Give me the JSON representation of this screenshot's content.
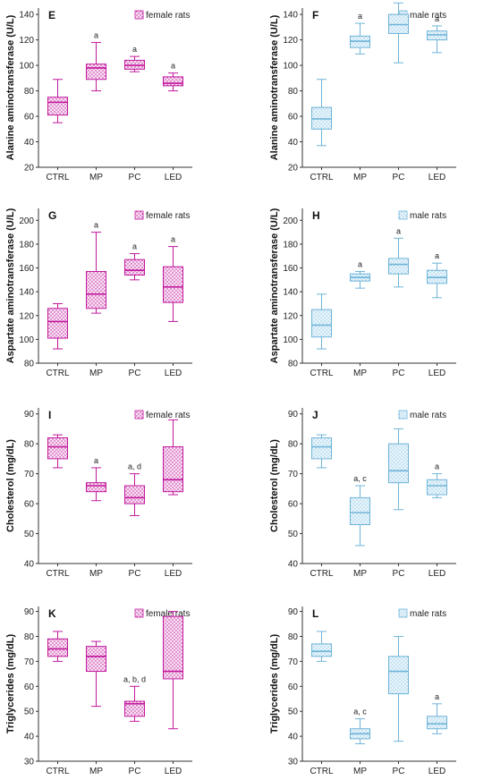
{
  "colors": {
    "female": "#c2189c",
    "male": "#6fb4d9",
    "female_fill": "#f6dff1",
    "male_fill": "#e4f3fb"
  },
  "chart_data": [
    {
      "panel": "E",
      "type": "box",
      "legend": "female rats",
      "color_key": "female",
      "ylabel": "Alanine aminotransferase (U/L)",
      "ylim": [
        20,
        145
      ],
      "yticks": [
        "20",
        "40",
        "60",
        "80",
        "100",
        "120",
        "140"
      ],
      "categories": [
        "CTRL",
        "MP",
        "PC",
        "LED"
      ],
      "boxes": [
        {
          "min": 55,
          "q1": 61,
          "median": 71,
          "q3": 75,
          "max": 89,
          "label": ""
        },
        {
          "min": 80,
          "q1": 89,
          "median": 98,
          "q3": 101,
          "max": 118,
          "label": "a"
        },
        {
          "min": 95,
          "q1": 97,
          "median": 100,
          "q3": 104,
          "max": 107,
          "label": "a"
        },
        {
          "min": 80,
          "q1": 84,
          "median": 86,
          "q3": 91,
          "max": 94,
          "label": "a"
        }
      ]
    },
    {
      "panel": "F",
      "type": "box",
      "legend": "male rats",
      "color_key": "male",
      "ylabel": "Alanine aminotransferase (U/L)",
      "ylim": [
        20,
        145
      ],
      "yticks": [
        "20",
        "40",
        "60",
        "80",
        "100",
        "120",
        "140"
      ],
      "categories": [
        "CTRL",
        "MP",
        "PC",
        "LED"
      ],
      "boxes": [
        {
          "min": 37,
          "q1": 50,
          "median": 58,
          "q3": 67,
          "max": 89,
          "label": ""
        },
        {
          "min": 109,
          "q1": 114,
          "median": 119,
          "q3": 123,
          "max": 133,
          "label": "a"
        },
        {
          "min": 102,
          "q1": 125,
          "median": 132,
          "q3": 140,
          "max": 149,
          "label": "a"
        },
        {
          "min": 110,
          "q1": 120,
          "median": 124,
          "q3": 127,
          "max": 131,
          "label": "a"
        }
      ]
    },
    {
      "panel": "G",
      "type": "box",
      "legend": "female rats",
      "color_key": "female",
      "ylabel": "Aspartate aminotransferase (U/L)",
      "ylim": [
        80,
        210
      ],
      "yticks": [
        "80",
        "100",
        "120",
        "140",
        "160",
        "180",
        "200"
      ],
      "categories": [
        "CTRL",
        "MP",
        "PC",
        "LED"
      ],
      "boxes": [
        {
          "min": 92,
          "q1": 101,
          "median": 115,
          "q3": 126,
          "max": 130,
          "label": ""
        },
        {
          "min": 122,
          "q1": 126,
          "median": 138,
          "q3": 157,
          "max": 190,
          "label": "a"
        },
        {
          "min": 150,
          "q1": 154,
          "median": 158,
          "q3": 167,
          "max": 172,
          "label": "a"
        },
        {
          "min": 115,
          "q1": 131,
          "median": 144,
          "q3": 161,
          "max": 178,
          "label": "a"
        }
      ]
    },
    {
      "panel": "H",
      "type": "box",
      "legend": "male rats",
      "color_key": "male",
      "ylabel": "Aspartate aminotransferase (U/L)",
      "ylim": [
        80,
        210
      ],
      "yticks": [
        "80",
        "100",
        "120",
        "140",
        "160",
        "180",
        "200"
      ],
      "categories": [
        "CTRL",
        "MP",
        "PC",
        "LED"
      ],
      "boxes": [
        {
          "min": 92,
          "q1": 102,
          "median": 112,
          "q3": 125,
          "max": 138,
          "label": ""
        },
        {
          "min": 143,
          "q1": 149,
          "median": 152,
          "q3": 155,
          "max": 157,
          "label": "a"
        },
        {
          "min": 144,
          "q1": 155,
          "median": 163,
          "q3": 168,
          "max": 185,
          "label": "a"
        },
        {
          "min": 135,
          "q1": 147,
          "median": 152,
          "q3": 158,
          "max": 164,
          "label": "a"
        }
      ]
    },
    {
      "panel": "I",
      "type": "box",
      "legend": "female rats",
      "color_key": "female",
      "ylabel": "Cholesterol (mg/dL)",
      "ylim": [
        40,
        92
      ],
      "yticks": [
        "40",
        "50",
        "60",
        "70",
        "80",
        "90"
      ],
      "categories": [
        "CTRL",
        "MP",
        "PC",
        "LED"
      ],
      "boxes": [
        {
          "min": 72,
          "q1": 75,
          "median": 79,
          "q3": 82,
          "max": 83,
          "label": ""
        },
        {
          "min": 61,
          "q1": 64,
          "median": 66,
          "q3": 67,
          "max": 72,
          "label": "a"
        },
        {
          "min": 56,
          "q1": 60,
          "median": 62,
          "q3": 66,
          "max": 70,
          "label": "a, d"
        },
        {
          "min": 63,
          "q1": 64,
          "median": 68,
          "q3": 79,
          "max": 88,
          "label": ""
        }
      ]
    },
    {
      "panel": "J",
      "type": "box",
      "legend": "male rats",
      "color_key": "male",
      "ylabel": "Cholesterol (mg/dL)",
      "ylim": [
        40,
        92
      ],
      "yticks": [
        "40",
        "50",
        "60",
        "70",
        "80",
        "90"
      ],
      "categories": [
        "CTRL",
        "MP",
        "PC",
        "LED"
      ],
      "boxes": [
        {
          "min": 72,
          "q1": 75,
          "median": 79,
          "q3": 82,
          "max": 83,
          "label": ""
        },
        {
          "min": 46,
          "q1": 53,
          "median": 57,
          "q3": 62,
          "max": 66,
          "label": "a, c"
        },
        {
          "min": 58,
          "q1": 67,
          "median": 71,
          "q3": 80,
          "max": 85,
          "label": ""
        },
        {
          "min": 62,
          "q1": 63,
          "median": 66,
          "q3": 68,
          "max": 70,
          "label": "a"
        }
      ]
    },
    {
      "panel": "K",
      "type": "box",
      "legend": "female rats",
      "color_key": "female",
      "ylabel": "Triglycerides (mg/dL)",
      "ylim": [
        30,
        92
      ],
      "yticks": [
        "30",
        "40",
        "50",
        "60",
        "70",
        "80",
        "90"
      ],
      "categories": [
        "CTRL",
        "MP",
        "PC",
        "LED"
      ],
      "boxes": [
        {
          "min": 70,
          "q1": 72,
          "median": 75,
          "q3": 79,
          "max": 82,
          "label": ""
        },
        {
          "min": 52,
          "q1": 66,
          "median": 72,
          "q3": 76,
          "max": 78,
          "label": ""
        },
        {
          "min": 46,
          "q1": 48,
          "median": 53,
          "q3": 54,
          "max": 60,
          "label": "a, b, d"
        },
        {
          "min": 43,
          "q1": 63,
          "median": 66,
          "q3": 88,
          "max": 90,
          "label": ""
        }
      ]
    },
    {
      "panel": "L",
      "type": "box",
      "legend": "male rats",
      "color_key": "male",
      "ylabel": "Triglycerides (mg/dL)",
      "ylim": [
        30,
        92
      ],
      "yticks": [
        "30",
        "40",
        "50",
        "60",
        "70",
        "80",
        "90"
      ],
      "categories": [
        "CTRL",
        "MP",
        "PC",
        "LED"
      ],
      "boxes": [
        {
          "min": 70,
          "q1": 72,
          "median": 74,
          "q3": 77,
          "max": 82,
          "label": ""
        },
        {
          "min": 37,
          "q1": 39,
          "median": 41,
          "q3": 43,
          "max": 47,
          "label": "a, c"
        },
        {
          "min": 38,
          "q1": 57,
          "median": 66,
          "q3": 72,
          "max": 80,
          "label": ""
        },
        {
          "min": 41,
          "q1": 43,
          "median": 45,
          "q3": 48,
          "max": 53,
          "label": "a"
        }
      ]
    }
  ]
}
